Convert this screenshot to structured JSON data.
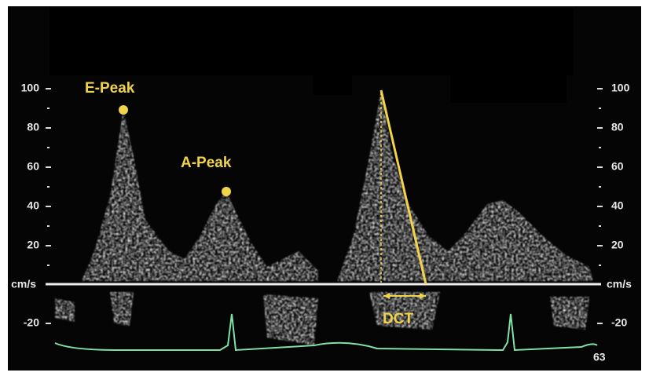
{
  "scale": {
    "ticks": [
      "100",
      "80",
      "60",
      "40",
      "20"
    ],
    "unit": "cm/s",
    "negative_ticks": [
      "-20"
    ]
  },
  "annotations": {
    "e_peak": "E-Peak",
    "a_peak": "A-Peak",
    "dct": "DCT"
  },
  "heart_rate": "63"
}
